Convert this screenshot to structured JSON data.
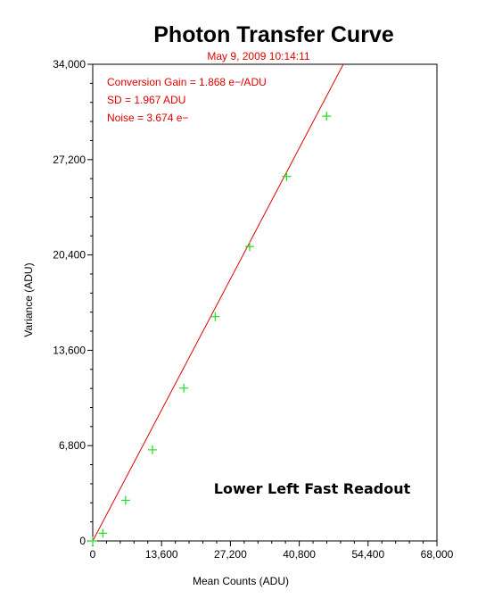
{
  "chart_data": {
    "type": "scatter",
    "title": "Photon Transfer Curve",
    "subtitle": "May 9, 2009  10:14:11",
    "xlabel": "Mean Counts (ADU)",
    "ylabel": "Variance (ADU)",
    "xlim": [
      0,
      68000
    ],
    "ylim": [
      0,
      34000
    ],
    "xticks": [
      0,
      13600,
      27200,
      40800,
      54400,
      68000
    ],
    "xtick_labels": [
      "0",
      "13,600",
      "27,200",
      "40,800",
      "54,400",
      "68,000"
    ],
    "yticks": [
      0,
      6800,
      13600,
      20400,
      27200,
      34000
    ],
    "ytick_labels": [
      "0",
      "6,800",
      "13,600",
      "20,400",
      "27,200",
      "34,000"
    ],
    "grid": false,
    "annotations": [
      "Conversion Gain = 1.868 e−/ADU",
      "SD = 1.967 ADU",
      "Noise = 3.674 e−"
    ],
    "note": "Lower Left Fast Readout",
    "series": [
      {
        "marker": "+",
        "color": "#22dd22",
        "x": [
          0,
          2000,
          6500,
          11800,
          18000,
          24200,
          31000,
          38300,
          46200
        ],
        "y": [
          0,
          550,
          2900,
          6500,
          10900,
          16000,
          21000,
          26000,
          30300
        ]
      }
    ],
    "fit_line": {
      "color": "#e00000",
      "x": [
        0,
        49500
      ],
      "y": [
        0,
        34000
      ]
    }
  },
  "colors": {
    "marker": "#22dd22",
    "fit_line": "#e00000",
    "annotation": "#e00000",
    "axis": "#000000"
  }
}
